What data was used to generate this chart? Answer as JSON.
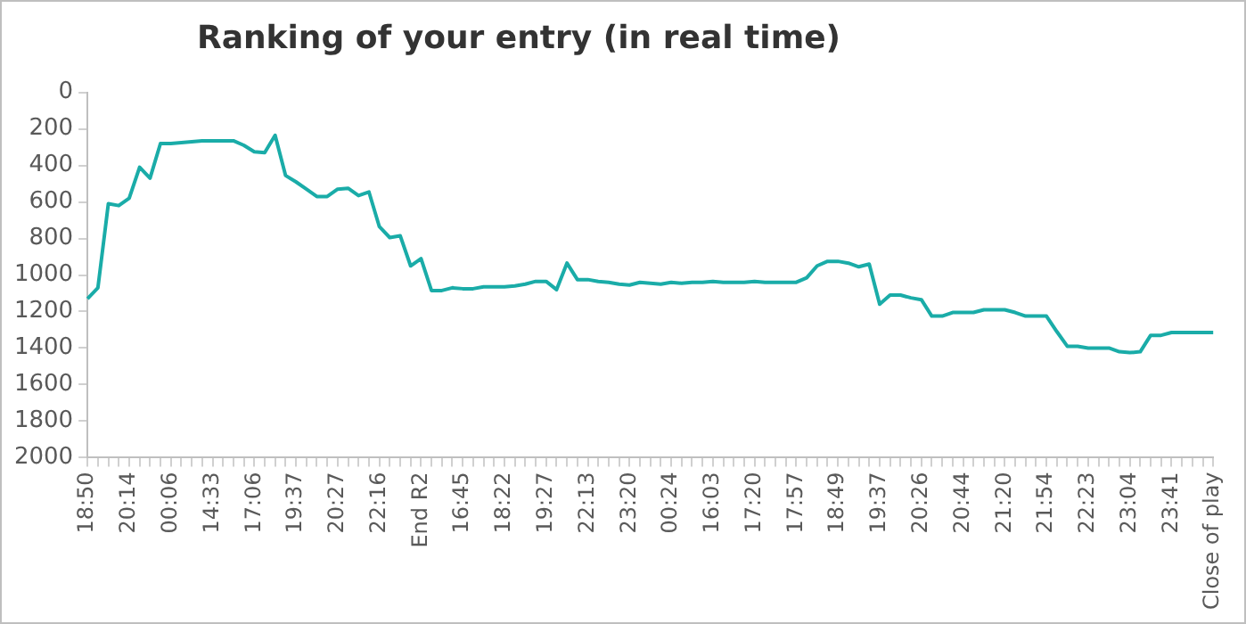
{
  "chart_data": {
    "type": "line",
    "title": "Ranking of your entry (in real time)",
    "categories": [
      "18:50",
      null,
      null,
      null,
      "20:14",
      null,
      null,
      null,
      "00:06",
      null,
      null,
      null,
      "14:33",
      null,
      null,
      null,
      "17:06",
      null,
      null,
      null,
      "19:37",
      null,
      null,
      null,
      "20:27",
      null,
      null,
      null,
      "22:16",
      null,
      null,
      null,
      "End R2",
      null,
      null,
      null,
      "16:45",
      null,
      null,
      null,
      "18:22",
      null,
      null,
      null,
      "19:27",
      null,
      null,
      null,
      "22:13",
      null,
      null,
      null,
      "23:20",
      null,
      null,
      null,
      "00:24",
      null,
      null,
      null,
      "16:03",
      null,
      null,
      null,
      "17:20",
      null,
      null,
      null,
      "17:57",
      null,
      null,
      null,
      "18:49",
      null,
      null,
      null,
      "19:37",
      null,
      null,
      null,
      "20:26",
      null,
      null,
      null,
      "20:44",
      null,
      null,
      null,
      "21:20",
      null,
      null,
      null,
      "21:54",
      null,
      null,
      null,
      "22:23",
      null,
      null,
      null,
      "23:04",
      null,
      null,
      null,
      "23:41",
      null,
      null,
      null,
      "Close of play"
    ],
    "series": [
      {
        "color": "#1aaca8",
        "values": [
          1130,
          1070,
          610,
          620,
          580,
          410,
          470,
          280,
          280,
          275,
          270,
          265,
          265,
          265,
          265,
          290,
          325,
          330,
          235,
          455,
          490,
          530,
          570,
          570,
          530,
          525,
          565,
          545,
          735,
          795,
          785,
          950,
          910,
          1085,
          1085,
          1070,
          1075,
          1075,
          1065,
          1065,
          1065,
          1060,
          1050,
          1035,
          1035,
          1080,
          935,
          1025,
          1025,
          1035,
          1040,
          1050,
          1055,
          1040,
          1045,
          1050,
          1040,
          1045,
          1040,
          1040,
          1035,
          1040,
          1040,
          1040,
          1035,
          1040,
          1040,
          1040,
          1040,
          1015,
          950,
          925,
          925,
          935,
          955,
          940,
          1160,
          1110,
          1110,
          1125,
          1135,
          1225,
          1225,
          1205,
          1205,
          1205,
          1190,
          1190,
          1190,
          1205,
          1225,
          1225,
          1225,
          1310,
          1390,
          1390,
          1400,
          1400,
          1400,
          1420,
          1425,
          1420,
          1330,
          1330,
          1315,
          1315,
          1315,
          1315,
          1315
        ]
      }
    ],
    "ylim": [
      2000,
      0
    ],
    "yticks": [
      0,
      200,
      400,
      600,
      800,
      1000,
      1200,
      1400,
      1600,
      1800,
      2000
    ],
    "grid": false,
    "legend": false,
    "marker": "none",
    "line_style": "solid"
  }
}
